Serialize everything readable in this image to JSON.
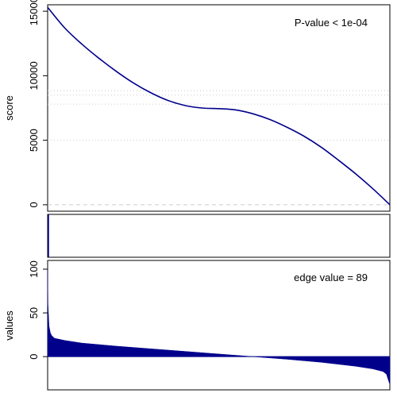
{
  "chart_data": [
    {
      "type": "line",
      "ylabel": "score",
      "ylim": [
        -500,
        15500
      ],
      "yticks": [
        0,
        5000,
        10000,
        15000
      ],
      "annotation": "P-value < 1e-04",
      "curve": {
        "x": [
          0,
          0.05,
          0.1,
          0.15,
          0.2,
          0.25,
          0.3,
          0.35,
          0.4,
          0.45,
          0.5,
          0.55,
          0.6,
          0.65,
          0.7,
          0.75,
          0.8,
          0.85,
          0.9,
          0.95,
          1.0
        ],
        "y": [
          15300,
          13700,
          12450,
          11350,
          10350,
          9450,
          8700,
          8100,
          7700,
          7500,
          7450,
          7350,
          7050,
          6600,
          6000,
          5300,
          4450,
          3450,
          2400,
          1250,
          0
        ]
      },
      "reference_lines": [
        {
          "y": 0,
          "style": "dashed"
        },
        {
          "y": 5000,
          "style": "dotted"
        },
        {
          "y": 7800,
          "style": "dotted"
        },
        {
          "y": 8500,
          "style": "dotted"
        },
        {
          "y": 8850,
          "style": "dotted"
        }
      ],
      "line_color": "#00008b"
    },
    {
      "type": "bar",
      "description_of_marks": "single hit marker at the start",
      "hits": [
        0
      ],
      "line_color": "#00008b"
    },
    {
      "type": "area",
      "ylabel": "values",
      "ylim": [
        -38,
        110
      ],
      "yticks": [
        0,
        50,
        100
      ],
      "annotation": "edge value =  89",
      "curve": {
        "x": [
          0,
          0.001,
          0.004,
          0.008,
          0.012,
          0.02,
          0.05,
          0.1,
          0.2,
          0.3,
          0.4,
          0.5,
          0.6,
          0.7,
          0.8,
          0.9,
          0.95,
          0.98,
          0.99,
          1.0
        ],
        "y": [
          100,
          60,
          35,
          27,
          24,
          21,
          18.5,
          15.5,
          12,
          9,
          6,
          3,
          0,
          -3,
          -6.5,
          -11,
          -14,
          -17,
          -20,
          -32
        ]
      },
      "fill_color": "#00008b"
    }
  ]
}
